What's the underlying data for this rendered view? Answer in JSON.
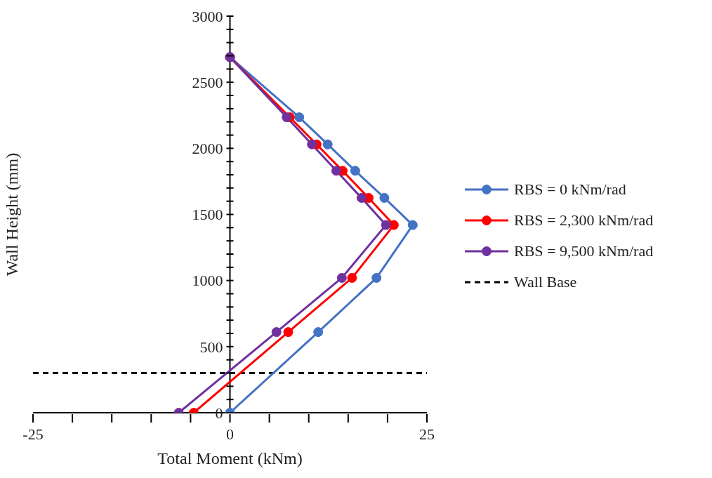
{
  "chart_data": {
    "type": "line",
    "xlabel": "Total Moment (kNm)",
    "ylabel": "Wall Height (mm)",
    "xlim": [
      -25,
      25
    ],
    "xticks": [
      -25,
      {
        "value": -20,
        "label": null
      },
      {
        "value": -15,
        "label": null
      },
      {
        "value": -10,
        "label": null
      },
      {
        "value": -5,
        "label": null
      },
      0,
      {
        "value": 5,
        "label": null
      },
      {
        "value": 10,
        "label": null
      },
      {
        "value": 15,
        "label": null
      },
      {
        "value": 20,
        "label": null
      },
      25
    ],
    "ylim": [
      0,
      3000
    ],
    "yticks": [
      0,
      {
        "value": 100,
        "label": null
      },
      {
        "value": 200,
        "label": null
      },
      {
        "value": 300,
        "label": null
      },
      {
        "value": 400,
        "label": null
      },
      500,
      {
        "value": 600,
        "label": null
      },
      {
        "value": 700,
        "label": null
      },
      {
        "value": 800,
        "label": null
      },
      {
        "value": 900,
        "label": null
      },
      1000,
      {
        "value": 1100,
        "label": null
      },
      {
        "value": 1200,
        "label": null
      },
      {
        "value": 1300,
        "label": null
      },
      {
        "value": 1400,
        "label": null
      },
      1500,
      {
        "value": 1600,
        "label": null
      },
      {
        "value": 1700,
        "label": null
      },
      {
        "value": 1800,
        "label": null
      },
      {
        "value": 1900,
        "label": null
      },
      2000,
      {
        "value": 2100,
        "label": null
      },
      {
        "value": 2200,
        "label": null
      },
      {
        "value": 2300,
        "label": null
      },
      {
        "value": 2400,
        "label": null
      },
      2500,
      {
        "value": 2600,
        "label": null
      },
      {
        "value": 2700,
        "label": null
      },
      {
        "value": 2800,
        "label": null
      },
      {
        "value": 2900,
        "label": null
      },
      3000
    ],
    "marker": "circle",
    "line_style": "solid",
    "legend": "right",
    "grid": false,
    "series": [
      {
        "name": "RBS = 0 kNm/rad",
        "color": "#4472c4",
        "x": [
          0,
          11.2,
          18.6,
          23.2,
          19.6,
          15.9,
          12.4,
          8.8,
          0
        ],
        "values": [
          0,
          610,
          1020,
          1420,
          1625,
          1830,
          2030,
          2235,
          2690
        ]
      },
      {
        "name": "RBS = 2,300 kNm/rad",
        "color": "#ff0000",
        "x": [
          -4.6,
          7.4,
          15.5,
          20.8,
          17.6,
          14.3,
          11.0,
          7.6,
          0
        ],
        "values": [
          0,
          610,
          1020,
          1420,
          1625,
          1830,
          2030,
          2235,
          2690
        ]
      },
      {
        "name": "RBS = 9,500 kNm/rad",
        "color": "#7030a0",
        "x": [
          -6.5,
          5.9,
          14.2,
          19.8,
          16.7,
          13.5,
          10.4,
          7.2,
          0
        ],
        "values": [
          0,
          610,
          1020,
          1420,
          1625,
          1830,
          2030,
          2235,
          2690
        ]
      }
    ],
    "ref_lines": [
      {
        "axis": "y",
        "value": 300,
        "label": "Wall Base",
        "color": "#000000",
        "line_style": "dashed"
      }
    ]
  }
}
